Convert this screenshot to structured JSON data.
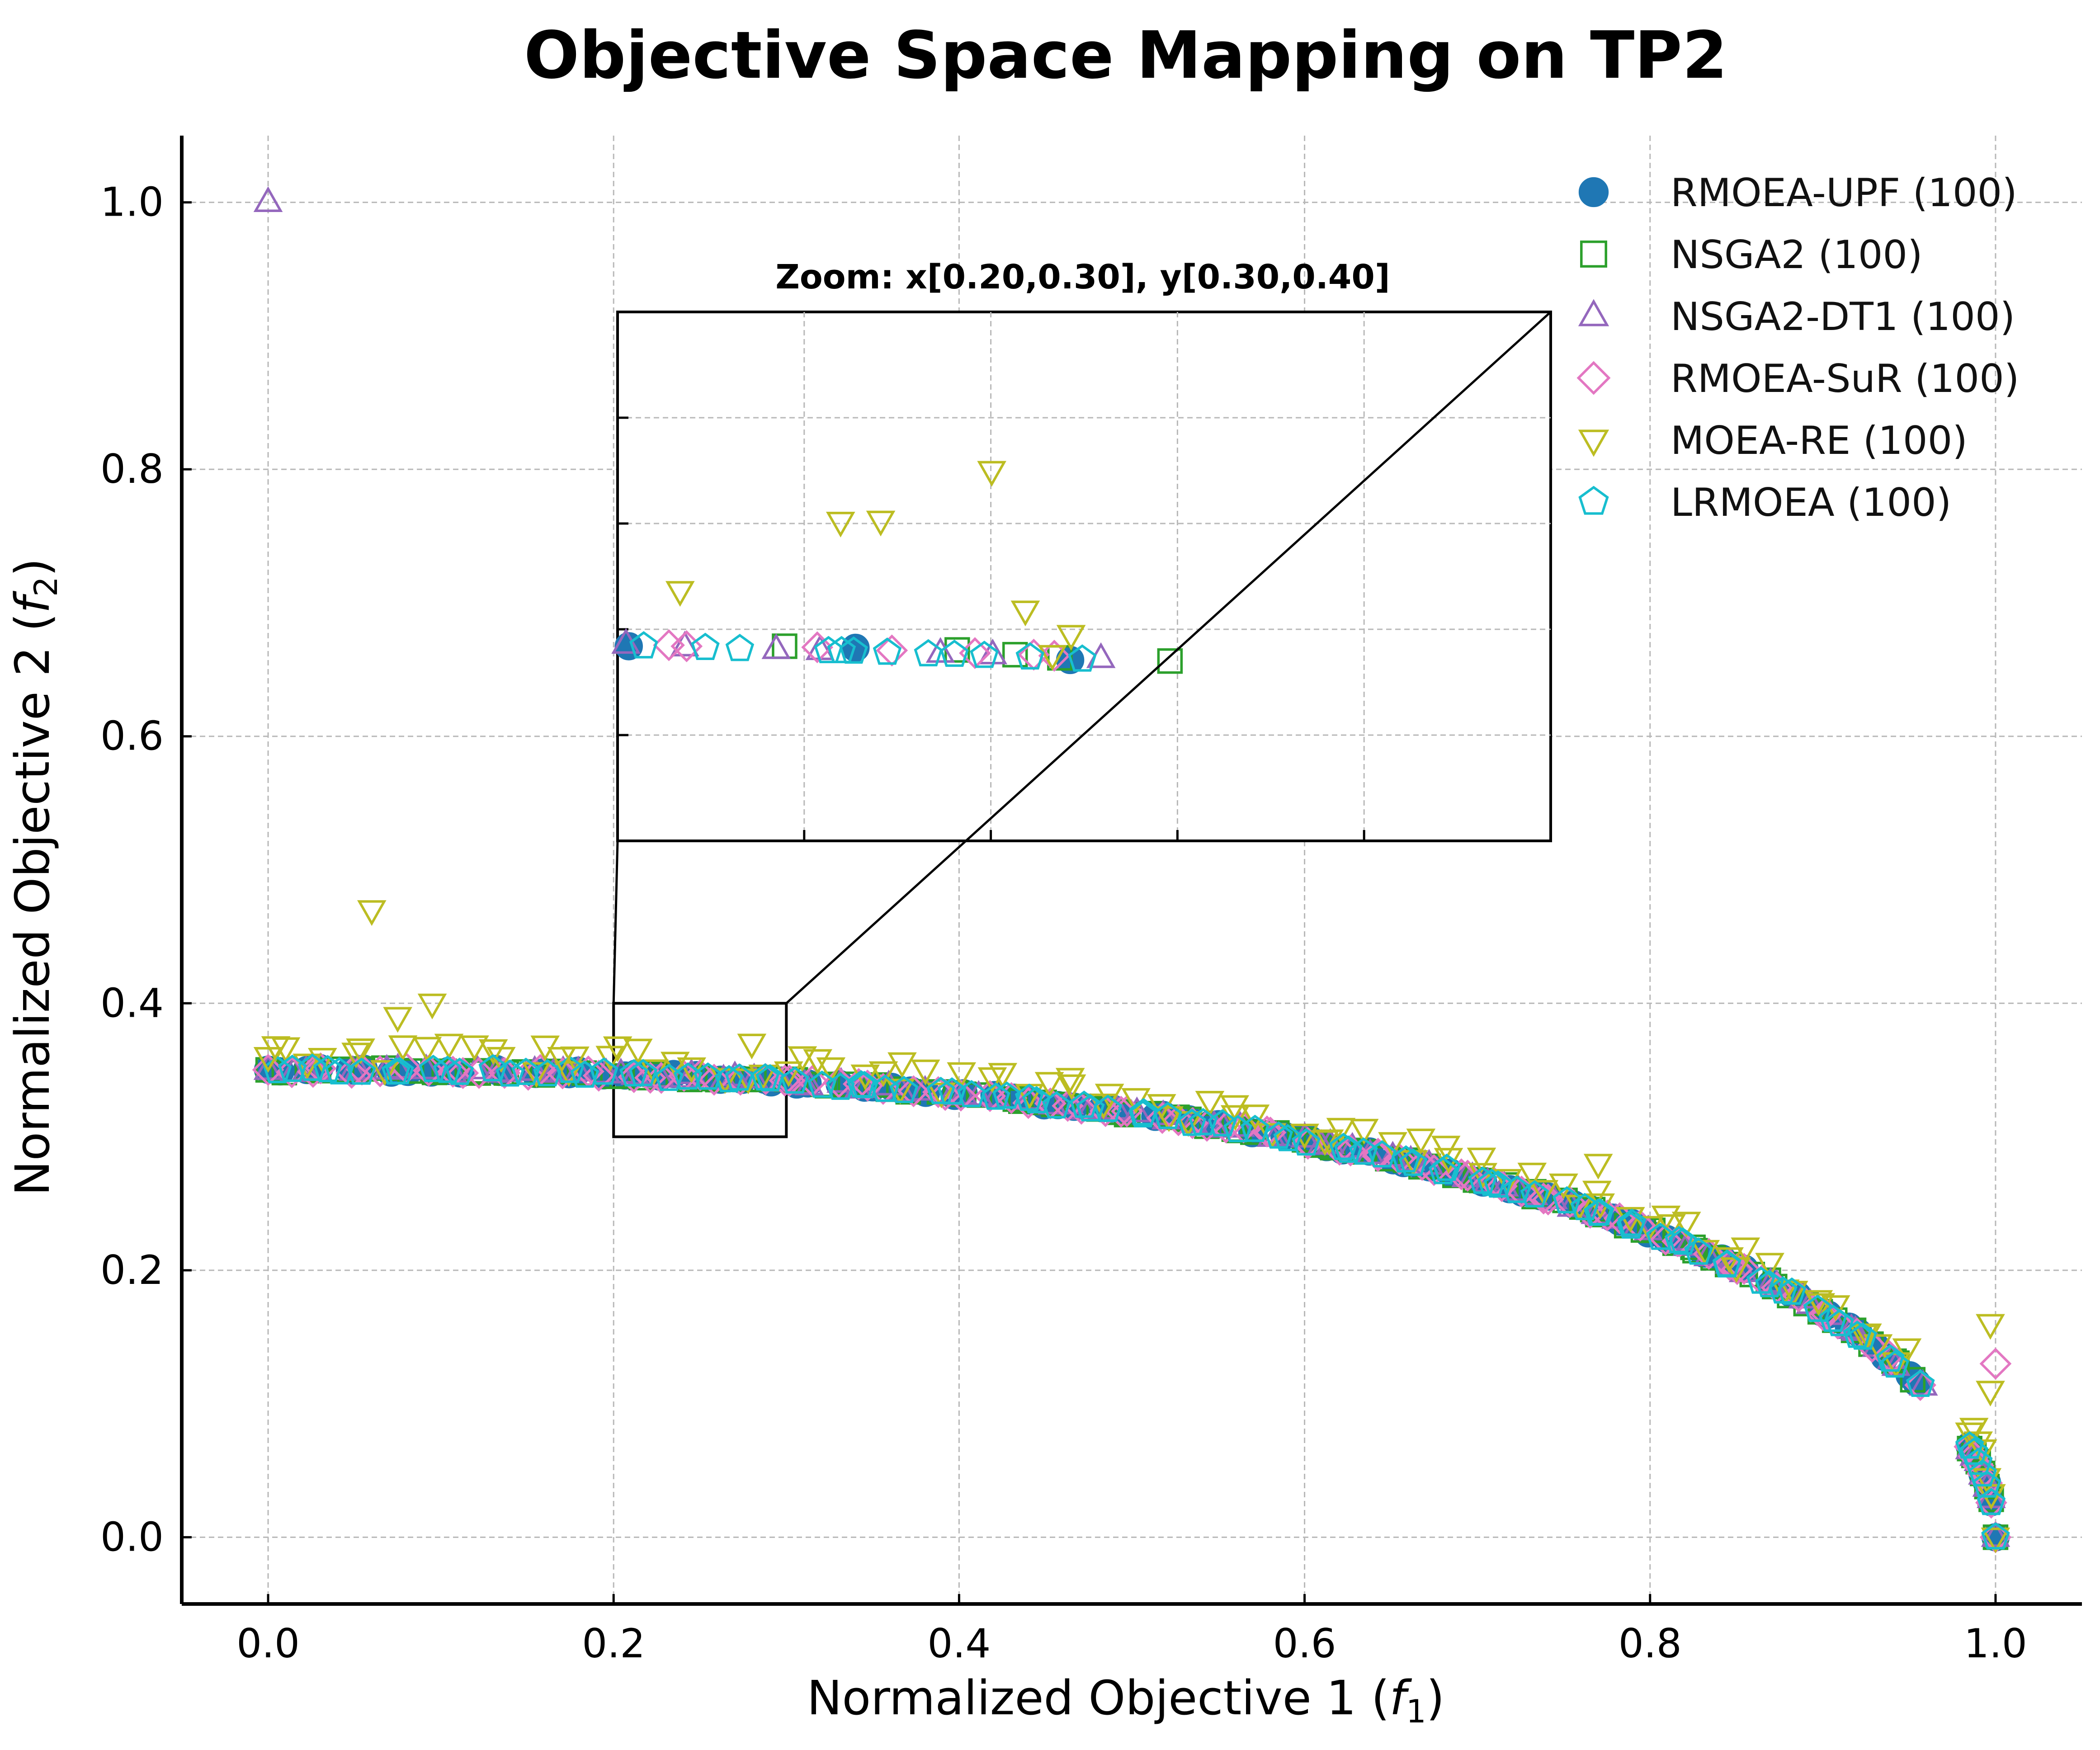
{
  "chart_data": {
    "type": "scatter",
    "title": "Objective Space Mapping on TP2",
    "xlabel": "Normalized Objective 1 (f1)",
    "xlabel_main": "Normalized Objective 1 (",
    "xlabel_var": "f",
    "xlabel_sub": "1",
    "xlabel_close": ")",
    "ylabel": "Normalized Objective 2 (f2)",
    "ylabel_main": "Normalized Objective 2 (",
    "ylabel_var": "f",
    "ylabel_sub": "2",
    "ylabel_close": ")",
    "xlim": [
      -0.05,
      1.05
    ],
    "ylim": [
      -0.05,
      1.05
    ],
    "xticks": [
      0.0,
      0.2,
      0.4,
      0.6,
      0.8,
      1.0
    ],
    "yticks": [
      0.0,
      0.2,
      0.4,
      0.6,
      0.8,
      1.0
    ],
    "xtick_labels": [
      "0.0",
      "0.2",
      "0.4",
      "0.6",
      "0.8",
      "1.0"
    ],
    "ytick_labels": [
      "0.0",
      "0.2",
      "0.4",
      "0.6",
      "0.8",
      "1.0"
    ],
    "grid": true,
    "legend_position": "top-right",
    "front_function": "f2 = 0.35 * (1 - f1^2.5)^(0.5)",
    "series": [
      {
        "name": "RMOEA-UPF (100)",
        "marker": "circle",
        "color": "#1f77b4",
        "filled": true
      },
      {
        "name": "NSGA2 (100)",
        "marker": "square",
        "color": "#2ca02c",
        "filled": false
      },
      {
        "name": "NSGA2-DT1 (100)",
        "marker": "triangle-up",
        "color": "#9467bd",
        "filled": false
      },
      {
        "name": "RMOEA-SuR (100)",
        "marker": "diamond",
        "color": "#e377c2",
        "filled": false
      },
      {
        "name": "MOEA-RE (100)",
        "marker": "triangle-down",
        "color": "#bcbd22",
        "filled": false
      },
      {
        "name": "LRMOEA (100)",
        "marker": "pentagon",
        "color": "#17becf",
        "filled": false
      }
    ],
    "outliers": [
      {
        "series": "NSGA2-DT1 (100)",
        "x": 0.0,
        "y": 1.0
      },
      {
        "series": "MOEA-RE (100)",
        "x": 0.0,
        "y": 0.36
      },
      {
        "series": "MOEA-RE (100)",
        "x": 0.06,
        "y": 0.47
      },
      {
        "series": "MOEA-RE (100)",
        "x": 0.075,
        "y": 0.39
      },
      {
        "series": "MOEA-RE (100)",
        "x": 0.095,
        "y": 0.4
      },
      {
        "series": "MOEA-RE (100)",
        "x": 0.17,
        "y": 0.36
      },
      {
        "series": "MOEA-RE (100)",
        "x": 0.28,
        "y": 0.37
      },
      {
        "series": "MOEA-RE (100)",
        "x": 0.77,
        "y": 0.28
      },
      {
        "series": "MOEA-RE (100)",
        "x": 0.997,
        "y": 0.16
      },
      {
        "series": "MOEA-RE (100)",
        "x": 0.997,
        "y": 0.11
      },
      {
        "series": "RMOEA-SuR (100)",
        "x": 1.0,
        "y": 0.13
      }
    ],
    "inset": {
      "title": "Zoom: x[0.20,0.30], y[0.30,0.40]",
      "xlim": [
        0.2,
        0.3
      ],
      "ylim": [
        0.3,
        0.4
      ],
      "points": [
        {
          "series": "RMOEA-UPF (100)",
          "x": 0.2012,
          "y": 0.3368
        },
        {
          "series": "RMOEA-UPF (100)",
          "x": 0.2255,
          "y": 0.3365
        },
        {
          "series": "RMOEA-UPF (100)",
          "x": 0.2485,
          "y": 0.3342
        },
        {
          "series": "NSGA2 (100)",
          "x": 0.2179,
          "y": 0.3368
        },
        {
          "series": "NSGA2 (100)",
          "x": 0.2364,
          "y": 0.3361
        },
        {
          "series": "NSGA2 (100)",
          "x": 0.2426,
          "y": 0.3352
        },
        {
          "series": "NSGA2 (100)",
          "x": 0.2474,
          "y": 0.3346
        },
        {
          "series": "NSGA2 (100)",
          "x": 0.2592,
          "y": 0.334
        },
        {
          "series": "NSGA2-DT1 (100)",
          "x": 0.2009,
          "y": 0.3372
        },
        {
          "series": "NSGA2-DT1 (100)",
          "x": 0.2072,
          "y": 0.3367
        },
        {
          "series": "NSGA2-DT1 (100)",
          "x": 0.217,
          "y": 0.3362
        },
        {
          "series": "NSGA2-DT1 (100)",
          "x": 0.2217,
          "y": 0.336
        },
        {
          "series": "NSGA2-DT1 (100)",
          "x": 0.2346,
          "y": 0.3355
        },
        {
          "series": "NSGA2-DT1 (100)",
          "x": 0.2402,
          "y": 0.3352
        },
        {
          "series": "NSGA2-DT1 (100)",
          "x": 0.2518,
          "y": 0.3345
        },
        {
          "series": "RMOEA-SuR (100)",
          "x": 0.2055,
          "y": 0.337
        },
        {
          "series": "RMOEA-SuR (100)",
          "x": 0.2074,
          "y": 0.3368
        },
        {
          "series": "RMOEA-SuR (100)",
          "x": 0.2214,
          "y": 0.3366
        },
        {
          "series": "RMOEA-SuR (100)",
          "x": 0.2294,
          "y": 0.336
        },
        {
          "series": "RMOEA-SuR (100)",
          "x": 0.2383,
          "y": 0.3355
        },
        {
          "series": "RMOEA-SuR (100)",
          "x": 0.2446,
          "y": 0.3352
        },
        {
          "series": "RMOEA-SuR (100)",
          "x": 0.2468,
          "y": 0.335
        },
        {
          "series": "MOEA-RE (100)",
          "x": 0.2067,
          "y": 0.3473
        },
        {
          "series": "MOEA-RE (100)",
          "x": 0.2239,
          "y": 0.3604
        },
        {
          "series": "MOEA-RE (100)",
          "x": 0.2282,
          "y": 0.3606
        },
        {
          "series": "MOEA-RE (100)",
          "x": 0.2401,
          "y": 0.37
        },
        {
          "series": "MOEA-RE (100)",
          "x": 0.2437,
          "y": 0.3436
        },
        {
          "series": "MOEA-RE (100)",
          "x": 0.2466,
          "y": 0.3352
        },
        {
          "series": "MOEA-RE (100)",
          "x": 0.2486,
          "y": 0.339
        },
        {
          "series": "LRMOEA (100)",
          "x": 0.2028,
          "y": 0.3368
        },
        {
          "series": "LRMOEA (100)",
          "x": 0.2094,
          "y": 0.3365
        },
        {
          "series": "LRMOEA (100)",
          "x": 0.2131,
          "y": 0.3363
        },
        {
          "series": "LRMOEA (100)",
          "x": 0.2226,
          "y": 0.3359
        },
        {
          "series": "LRMOEA (100)",
          "x": 0.224,
          "y": 0.3359
        },
        {
          "series": "LRMOEA (100)",
          "x": 0.2253,
          "y": 0.3358
        },
        {
          "series": "LRMOEA (100)",
          "x": 0.2289,
          "y": 0.3356
        },
        {
          "series": "LRMOEA (100)",
          "x": 0.2333,
          "y": 0.3353
        },
        {
          "series": "LRMOEA (100)",
          "x": 0.2361,
          "y": 0.3352
        },
        {
          "series": "LRMOEA (100)",
          "x": 0.2393,
          "y": 0.335
        },
        {
          "series": "LRMOEA (100)",
          "x": 0.2442,
          "y": 0.3347
        },
        {
          "series": "LRMOEA (100)",
          "x": 0.2498,
          "y": 0.3343
        }
      ]
    }
  }
}
